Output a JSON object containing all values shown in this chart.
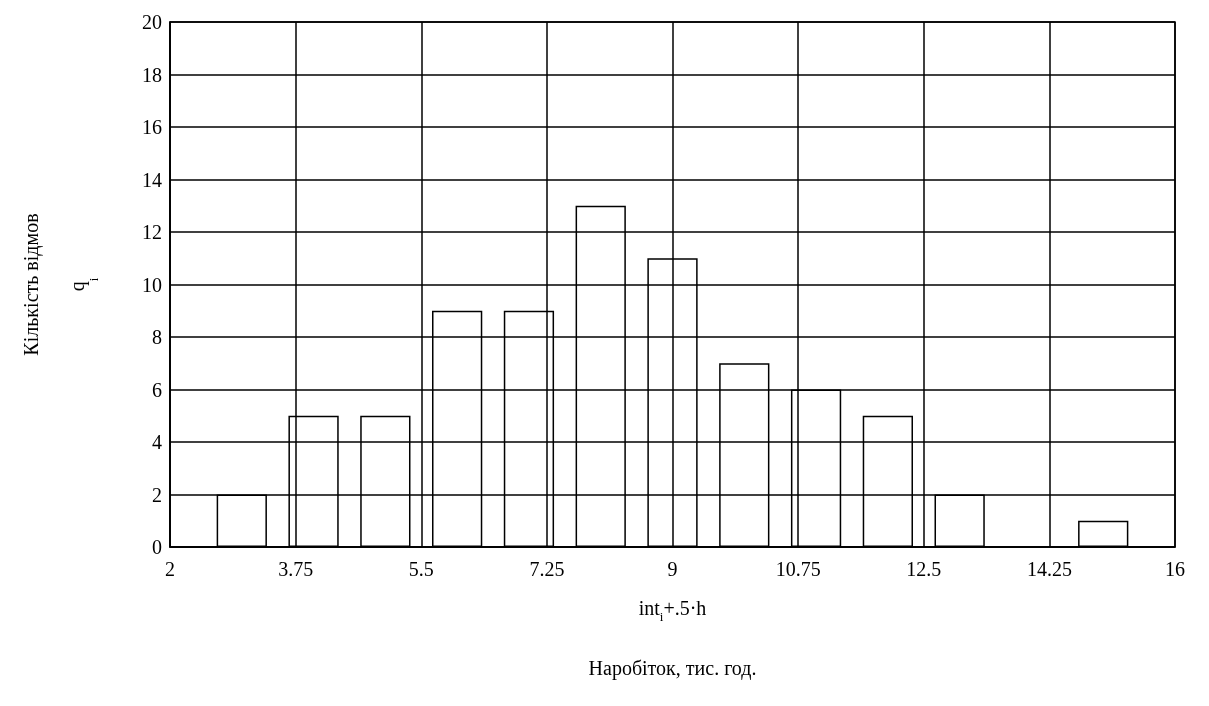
{
  "chart_data": {
    "type": "bar",
    "ylabel": "Кількість відмов\nq$_{i}$",
    "xlabel": "int$_{i}$+.5·h\n\nНаробіток, тис. год.",
    "x": [
      3,
      4,
      5,
      6,
      7,
      8,
      9,
      10,
      11,
      12,
      13,
      15
    ],
    "values": [
      2,
      5,
      5,
      9,
      9,
      13,
      11,
      7,
      6,
      5,
      2,
      1
    ],
    "color": "#000000",
    "xlim": [
      2,
      16
    ],
    "xticks": [
      2,
      3.75,
      5.5,
      7.25,
      9,
      10.75,
      12.5,
      14.25,
      16
    ],
    "ylim": [
      0,
      20
    ],
    "yticks": [
      0,
      2,
      4,
      6,
      8,
      10,
      12,
      14,
      16,
      18,
      20
    ],
    "grid": true
  }
}
